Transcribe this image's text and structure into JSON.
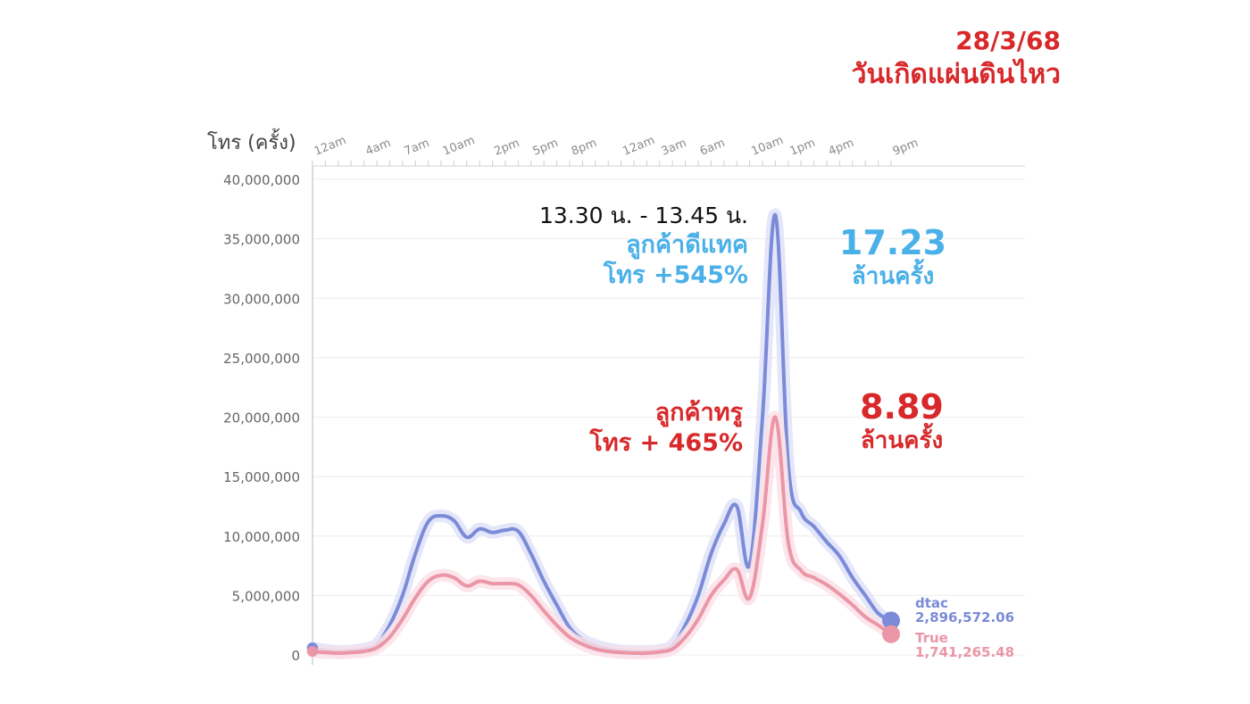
{
  "headline": {
    "date": "28/3/68",
    "event": "วันเกิดแผ่นดินไหว"
  },
  "annotations": {
    "time_range": "13.30 น. - 13.45 น.",
    "dtac_label_line1": "ลูกค้าดีแทค",
    "dtac_label_line2": "โทร +545%",
    "dtac_value": "17.23",
    "dtac_unit": "ล้านครั้ง",
    "true_label_line1": "ลูกค้าทรู",
    "true_label_line2": "โทร + 465%",
    "true_value": "8.89",
    "true_unit": "ล้านครั้ง"
  },
  "colors": {
    "dtac": "#7b8bd8",
    "true": "#eb96a6",
    "dtac_text": "#4ab0e8",
    "accent_red": "#d8282a"
  },
  "chart_data": {
    "type": "line",
    "ylabel": "โทร (ครั้ง)",
    "ylim": [
      0,
      40000000
    ],
    "xlim": [
      0,
      45
    ],
    "y_ticks": [
      {
        "value": 0,
        "label": "0"
      },
      {
        "value": 5000000,
        "label": "5,000,000"
      },
      {
        "value": 10000000,
        "label": "10,000,000"
      },
      {
        "value": 15000000,
        "label": "15,000,000"
      },
      {
        "value": 20000000,
        "label": "20,000,000"
      },
      {
        "value": 25000000,
        "label": "25,000,000"
      },
      {
        "value": 30000000,
        "label": "30,000,000"
      },
      {
        "value": 35000000,
        "label": "35,000,000"
      },
      {
        "value": 40000000,
        "label": "40,000,000"
      }
    ],
    "x_ticks": [
      {
        "value": 0,
        "label": "12am"
      },
      {
        "value": 4,
        "label": "4am"
      },
      {
        "value": 7,
        "label": "7am"
      },
      {
        "value": 10,
        "label": "10am"
      },
      {
        "value": 14,
        "label": "2pm"
      },
      {
        "value": 17,
        "label": "5pm"
      },
      {
        "value": 20,
        "label": "8pm"
      },
      {
        "value": 24,
        "label": "12am"
      },
      {
        "value": 27,
        "label": "3am"
      },
      {
        "value": 30,
        "label": "6am"
      },
      {
        "value": 34,
        "label": "10am"
      },
      {
        "value": 37,
        "label": "1pm"
      },
      {
        "value": 40,
        "label": "4pm"
      },
      {
        "value": 45,
        "label": "9pm"
      }
    ],
    "grid": true,
    "series": [
      {
        "name": "dtac",
        "end_value_label": "2,896,572.06",
        "points": [
          [
            0,
            600000
          ],
          [
            1,
            400000
          ],
          [
            2,
            300000
          ],
          [
            3,
            350000
          ],
          [
            4,
            500000
          ],
          [
            5,
            900000
          ],
          [
            6,
            2500000
          ],
          [
            7,
            5000000
          ],
          [
            8,
            8500000
          ],
          [
            9,
            11200000
          ],
          [
            10,
            11700000
          ],
          [
            11,
            11300000
          ],
          [
            12,
            9900000
          ],
          [
            13,
            10600000
          ],
          [
            14,
            10300000
          ],
          [
            15,
            10500000
          ],
          [
            16,
            10400000
          ],
          [
            17,
            8500000
          ],
          [
            18,
            6200000
          ],
          [
            19,
            4200000
          ],
          [
            20,
            2300000
          ],
          [
            21,
            1300000
          ],
          [
            22,
            800000
          ],
          [
            23,
            500000
          ],
          [
            24,
            350000
          ],
          [
            25,
            300000
          ],
          [
            26,
            300000
          ],
          [
            27,
            400000
          ],
          [
            28,
            800000
          ],
          [
            29,
            2500000
          ],
          [
            30,
            5000000
          ],
          [
            31,
            8500000
          ],
          [
            32,
            11000000
          ],
          [
            33,
            12500000
          ],
          [
            34,
            7600000
          ],
          [
            35,
            20000000
          ],
          [
            36,
            37000000
          ],
          [
            37,
            16000000
          ],
          [
            38,
            12000000
          ],
          [
            39,
            10800000
          ],
          [
            40,
            9500000
          ],
          [
            41,
            8300000
          ],
          [
            42,
            6500000
          ],
          [
            43,
            5000000
          ],
          [
            44,
            3500000
          ],
          [
            45,
            2896572.06
          ]
        ]
      },
      {
        "name": "True",
        "end_value_label": "1,741,265.48",
        "points": [
          [
            0,
            300000
          ],
          [
            1,
            200000
          ],
          [
            2,
            150000
          ],
          [
            3,
            200000
          ],
          [
            4,
            300000
          ],
          [
            5,
            600000
          ],
          [
            6,
            1500000
          ],
          [
            7,
            3000000
          ],
          [
            8,
            4800000
          ],
          [
            9,
            6200000
          ],
          [
            10,
            6700000
          ],
          [
            11,
            6500000
          ],
          [
            12,
            5800000
          ],
          [
            13,
            6200000
          ],
          [
            14,
            6000000
          ],
          [
            15,
            6000000
          ],
          [
            16,
            5900000
          ],
          [
            17,
            5000000
          ],
          [
            18,
            3700000
          ],
          [
            19,
            2500000
          ],
          [
            20,
            1500000
          ],
          [
            21,
            900000
          ],
          [
            22,
            500000
          ],
          [
            23,
            300000
          ],
          [
            24,
            200000
          ],
          [
            25,
            150000
          ],
          [
            26,
            150000
          ],
          [
            27,
            250000
          ],
          [
            28,
            500000
          ],
          [
            29,
            1500000
          ],
          [
            30,
            3000000
          ],
          [
            31,
            5000000
          ],
          [
            32,
            6300000
          ],
          [
            33,
            7200000
          ],
          [
            34,
            4800000
          ],
          [
            35,
            11000000
          ],
          [
            36,
            20000000
          ],
          [
            37,
            9500000
          ],
          [
            38,
            7100000
          ],
          [
            39,
            6500000
          ],
          [
            40,
            5900000
          ],
          [
            41,
            5100000
          ],
          [
            42,
            4200000
          ],
          [
            43,
            3200000
          ],
          [
            44,
            2500000
          ],
          [
            45,
            1741265.48
          ]
        ]
      }
    ]
  }
}
